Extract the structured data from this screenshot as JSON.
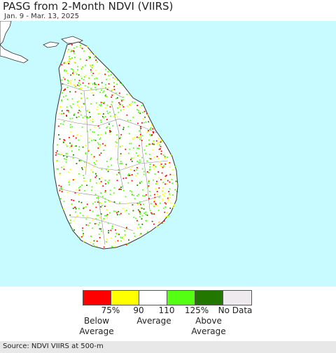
{
  "header": {
    "title": "PASG from 2-Month NDVI (VIIRS)",
    "date_range": "Jan. 9 - Mar. 13, 2025"
  },
  "map": {
    "region": "Sri Lanka",
    "ocean_color": "#c8fbff",
    "land_color": "#ffffff",
    "boundary_color": "#777777"
  },
  "legend": {
    "swatches": [
      {
        "color": "#ff0000",
        "label": "75%"
      },
      {
        "color": "#ffff00",
        "label": "90"
      },
      {
        "color": "#ffffff",
        "label": "110"
      },
      {
        "color": "#55ff11",
        "label": "125%"
      },
      {
        "color": "#227700",
        "label": ""
      },
      {
        "color": "#eeeaee",
        "label": "No Data"
      }
    ],
    "below_average": "Below\nAverage",
    "average": "Average",
    "above_average": "Above\nAverage"
  },
  "footer": {
    "source": "Source: NDVI VIIRS at 500-m"
  }
}
